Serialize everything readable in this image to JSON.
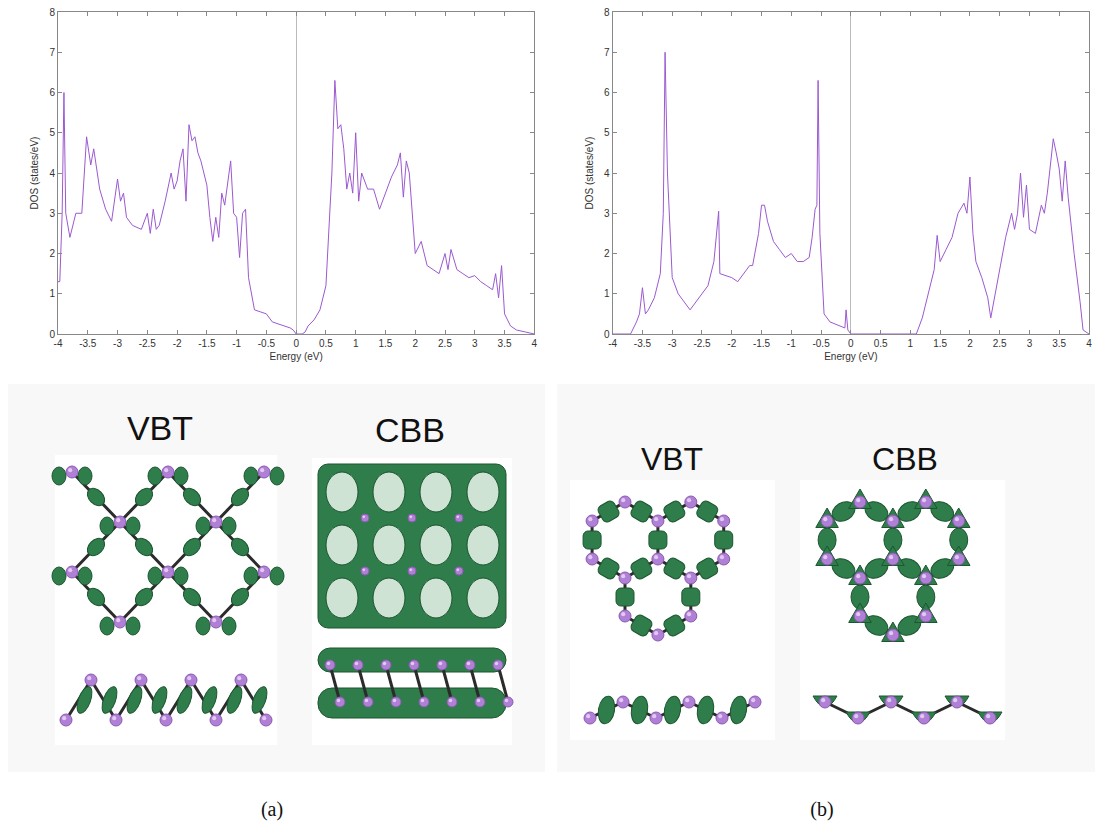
{
  "chart_data": [
    {
      "type": "line",
      "x_label": "Energy (eV)",
      "y_label": "DOS (states/eV)",
      "color": "#9b59d0",
      "xlim": [
        -4,
        4
      ],
      "xticks": [
        -4,
        -3.5,
        -3,
        -2.5,
        -2,
        -1.5,
        -1,
        -0.5,
        0,
        0.5,
        1,
        1.5,
        2,
        2.5,
        3,
        3.5,
        4
      ],
      "ylim": [
        0,
        8
      ],
      "yticks": [
        0,
        1,
        2,
        3,
        4,
        5,
        6,
        7,
        8
      ],
      "grid": false,
      "x": [
        -4,
        -3.97,
        -3.93,
        -3.9,
        -3.87,
        -3.8,
        -3.7,
        -3.6,
        -3.52,
        -3.45,
        -3.4,
        -3.3,
        -3.2,
        -3.1,
        -3,
        -2.95,
        -2.9,
        -2.85,
        -2.75,
        -2.6,
        -2.5,
        -2.45,
        -2.4,
        -2.35,
        -2.3,
        -2.2,
        -2.1,
        -2.05,
        -2,
        -1.95,
        -1.9,
        -1.85,
        -1.8,
        -1.75,
        -1.7,
        -1.65,
        -1.6,
        -1.5,
        -1.45,
        -1.4,
        -1.35,
        -1.3,
        -1.25,
        -1.2,
        -1.1,
        -1.05,
        -1,
        -0.95,
        -0.9,
        -0.85,
        -0.8,
        -0.7,
        -0.6,
        -0.5,
        -0.4,
        -0.3,
        -0.2,
        -0.1,
        -0.05,
        0,
        0.05,
        0.1,
        0.15,
        0.2,
        0.3,
        0.4,
        0.5,
        0.55,
        0.6,
        0.65,
        0.7,
        0.75,
        0.8,
        0.85,
        0.9,
        0.95,
        1,
        1.05,
        1.1,
        1.2,
        1.3,
        1.4,
        1.5,
        1.6,
        1.7,
        1.75,
        1.8,
        1.85,
        1.9,
        2,
        2.1,
        2.2,
        2.3,
        2.4,
        2.5,
        2.55,
        2.6,
        2.7,
        2.8,
        2.9,
        3,
        3.1,
        3.2,
        3.3,
        3.35,
        3.4,
        3.45,
        3.5,
        3.6,
        3.7,
        3.85,
        4
      ],
      "values": [
        1.3,
        1.3,
        3.0,
        6.0,
        3.0,
        2.4,
        3.0,
        3.0,
        4.9,
        4.2,
        4.6,
        3.6,
        3.1,
        2.8,
        3.85,
        3.3,
        3.5,
        2.9,
        2.7,
        2.6,
        3.0,
        2.5,
        3.1,
        2.6,
        2.7,
        3.3,
        4.0,
        3.6,
        3.8,
        4.3,
        4.6,
        3.3,
        5.2,
        4.8,
        4.9,
        4.5,
        4.3,
        3.7,
        2.9,
        2.3,
        2.9,
        2.4,
        3.5,
        3.2,
        4.3,
        3.0,
        2.9,
        1.9,
        3.0,
        3.1,
        1.4,
        0.6,
        0.55,
        0.5,
        0.3,
        0.25,
        0.2,
        0.15,
        0.1,
        0,
        0,
        0,
        0.05,
        0.2,
        0.35,
        0.6,
        1.2,
        2.5,
        4.0,
        6.3,
        5.1,
        5.2,
        4.6,
        3.6,
        4.0,
        3.5,
        5.0,
        3.3,
        4.0,
        3.6,
        3.6,
        3.1,
        3.5,
        3.9,
        4.2,
        4.5,
        3.4,
        4.3,
        4.0,
        2.0,
        2.3,
        1.7,
        1.6,
        1.5,
        2.0,
        1.6,
        2.1,
        1.6,
        1.5,
        1.4,
        1.45,
        1.3,
        1.2,
        1.1,
        1.5,
        0.9,
        1.7,
        0.5,
        0.2,
        0.1,
        0.05,
        0
      ]
    },
    {
      "type": "line",
      "x_label": "Energy (eV)",
      "y_label": "DOS (states/eV)",
      "color": "#9b59d0",
      "xlim": [
        -4,
        4
      ],
      "xticks": [
        -4,
        -3.5,
        -3,
        -2.5,
        -2,
        -1.5,
        -1,
        -0.5,
        0,
        0.5,
        1,
        1.5,
        2,
        2.5,
        3,
        3.5,
        4
      ],
      "ylim": [
        0,
        8
      ],
      "yticks": [
        0,
        1,
        2,
        3,
        4,
        5,
        6,
        7,
        8
      ],
      "grid": false,
      "x": [
        -4,
        -3.7,
        -3.6,
        -3.55,
        -3.5,
        -3.45,
        -3.4,
        -3.3,
        -3.2,
        -3.15,
        -3.12,
        -3.08,
        -3,
        -2.9,
        -2.7,
        -2.6,
        -2.4,
        -2.3,
        -2.22,
        -2.2,
        -2,
        -1.9,
        -1.8,
        -1.7,
        -1.65,
        -1.55,
        -1.5,
        -1.45,
        -1.4,
        -1.3,
        -1.2,
        -1.1,
        -1,
        -0.9,
        -0.8,
        -0.7,
        -0.65,
        -0.6,
        -0.57,
        -0.55,
        -0.52,
        -0.45,
        -0.35,
        -0.2,
        -0.1,
        -0.08,
        -0.05,
        0,
        1.1,
        1.2,
        1.3,
        1.4,
        1.45,
        1.5,
        1.6,
        1.7,
        1.8,
        1.9,
        1.95,
        2,
        2.05,
        2.1,
        2.2,
        2.3,
        2.35,
        2.4,
        2.5,
        2.6,
        2.7,
        2.75,
        2.8,
        2.85,
        2.9,
        2.95,
        3,
        3.1,
        3.2,
        3.25,
        3.3,
        3.4,
        3.45,
        3.5,
        3.55,
        3.6,
        3.65,
        3.75,
        3.85,
        3.9,
        4
      ],
      "values": [
        0,
        0,
        0.3,
        0.5,
        1.15,
        0.5,
        0.6,
        0.9,
        1.5,
        3.0,
        7.0,
        4.0,
        1.4,
        1.0,
        0.6,
        0.8,
        1.2,
        1.8,
        3.05,
        1.5,
        1.4,
        1.3,
        1.5,
        1.7,
        1.7,
        2.5,
        3.2,
        3.2,
        2.8,
        2.3,
        2.1,
        1.9,
        2.0,
        1.8,
        1.8,
        1.9,
        2.4,
        3.1,
        3.2,
        6.3,
        2.5,
        0.5,
        0.3,
        0.2,
        0.15,
        0.6,
        0.1,
        0,
        0,
        0.4,
        1.0,
        1.6,
        2.45,
        1.8,
        2.1,
        2.4,
        3.0,
        3.25,
        3.0,
        3.9,
        2.5,
        1.8,
        1.4,
        0.9,
        0.4,
        0.8,
        1.5,
        2.4,
        3.0,
        2.6,
        3.0,
        4.0,
        2.9,
        3.7,
        2.6,
        2.5,
        3.2,
        3.0,
        3.5,
        4.85,
        4.5,
        4.1,
        3.3,
        4.3,
        3.4,
        2.0,
        0.8,
        0.1,
        0
      ]
    }
  ],
  "panels": [
    {
      "label": "(a)",
      "isosurfaces": [
        "VBT",
        "CBB"
      ]
    },
    {
      "label": "(b)",
      "isosurfaces": [
        "VBT",
        "CBB"
      ]
    }
  ]
}
